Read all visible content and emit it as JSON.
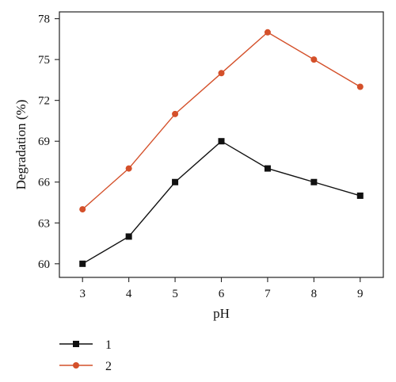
{
  "chart_data": {
    "type": "line",
    "x": [
      3,
      4,
      5,
      6,
      7,
      8,
      9
    ],
    "xlabel": "pH",
    "ylabel": "Degradation (%)",
    "xlim": [
      2.5,
      9.5
    ],
    "ylim": [
      59,
      78.5
    ],
    "yticks": [
      60,
      63,
      66,
      69,
      72,
      75,
      78
    ],
    "xticks": [
      3,
      4,
      5,
      6,
      7,
      8,
      9
    ],
    "grid": false,
    "legend_position": "bottom-left",
    "series": [
      {
        "name": "1",
        "values": [
          60,
          62,
          66,
          69,
          67,
          66,
          65
        ],
        "color": "#111111",
        "marker": "square"
      },
      {
        "name": "2",
        "values": [
          64,
          67,
          71,
          74,
          77,
          75,
          73
        ],
        "color": "#d4502a",
        "marker": "circle"
      }
    ]
  }
}
